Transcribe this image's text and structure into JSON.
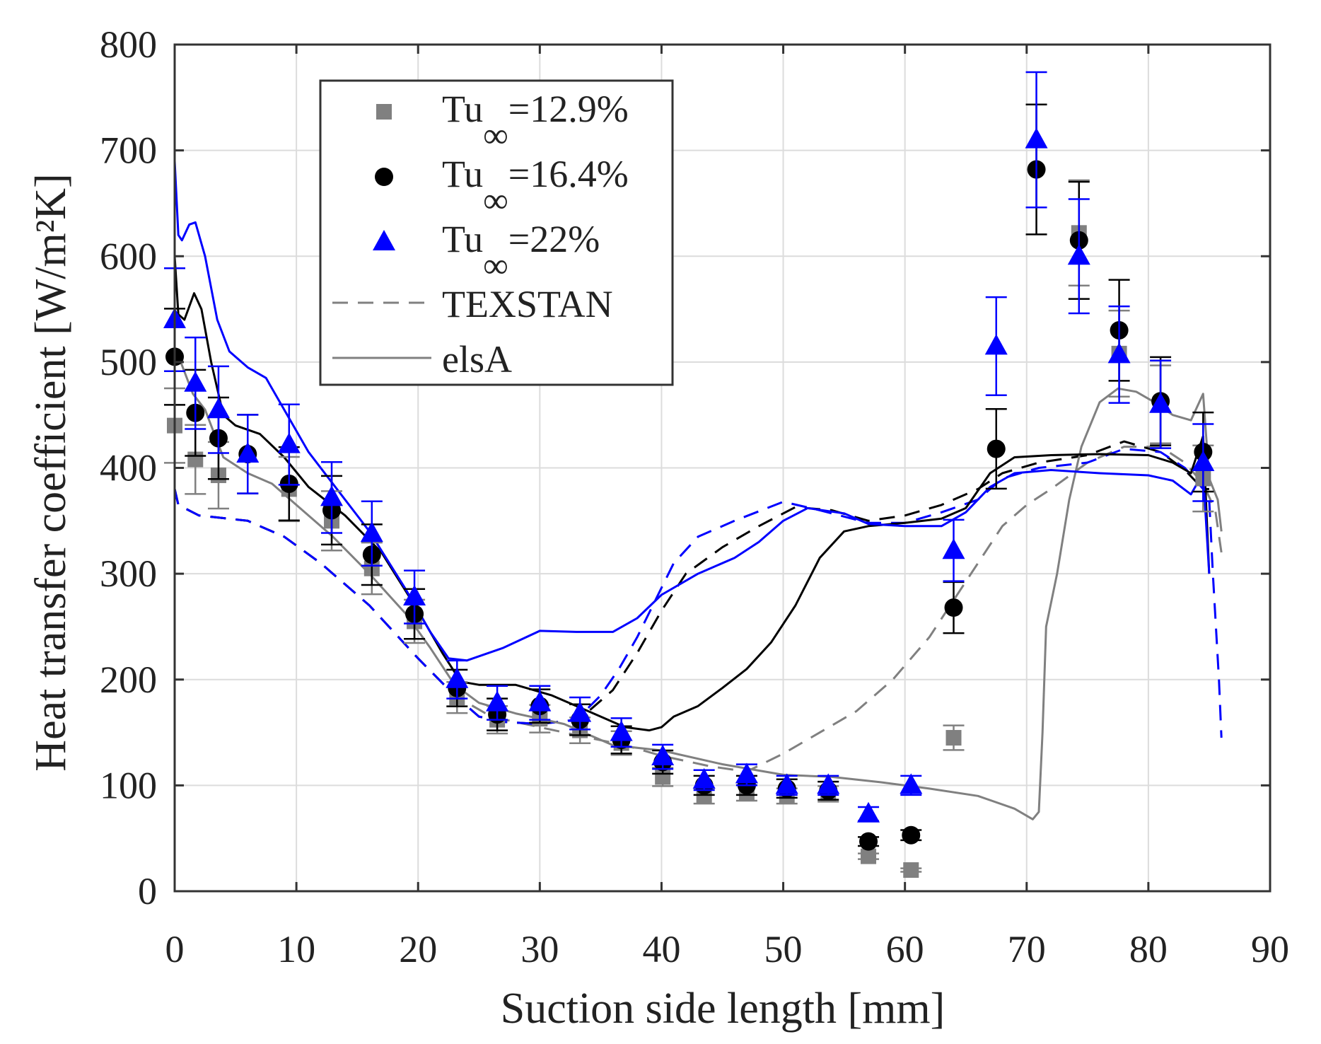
{
  "chart_data": {
    "type": "scatter",
    "xlabel": "Suction side length [mm]",
    "ylabel": "Heat transfer coefficient [W/m²K]",
    "xlim": [
      0,
      90
    ],
    "ylim": [
      0,
      800
    ],
    "xticks": [
      0,
      10,
      20,
      30,
      40,
      50,
      60,
      70,
      80,
      90
    ],
    "yticks": [
      0,
      100,
      200,
      300,
      400,
      500,
      600,
      700,
      800
    ],
    "xtick_labels": [
      "0",
      "10",
      "20",
      "30",
      "40",
      "50",
      "60",
      "70",
      "80",
      "90"
    ],
    "ytick_labels": [
      "0",
      "100",
      "200",
      "300",
      "400",
      "500",
      "600",
      "700",
      "800"
    ],
    "grid": true,
    "legend_position": "top-left",
    "legend": [
      {
        "prefix": "Tu",
        "sub": "∞",
        "suffix": "=12.9%",
        "marker": "square",
        "color": "#808080"
      },
      {
        "prefix": "Tu",
        "sub": "∞",
        "suffix": "=16.4%",
        "marker": "circle",
        "color": "#000000"
      },
      {
        "prefix": "Tu",
        "sub": "∞",
        "suffix": "=22%",
        "marker": "triangle",
        "color": "#0000ff"
      },
      {
        "label": "TEXSTAN",
        "style": "dashed",
        "color": "#808080"
      },
      {
        "label": "elsA",
        "style": "solid",
        "color": "#808080"
      }
    ],
    "x_positions": [
      0,
      1.7,
      3.6,
      6,
      9.4,
      12.9,
      16.2,
      19.7,
      23.2,
      26.5,
      30,
      33.3,
      36.7,
      40.1,
      43.5,
      47,
      50.3,
      53.7,
      57,
      60.5,
      64,
      67.5,
      70.8,
      74.3,
      77.6,
      81,
      84.5
    ],
    "series": [
      {
        "name": "Tu∞=12.9%",
        "marker": "square",
        "color": "#808080",
        "error_fraction": 0.08,
        "values": [
          440,
          408,
          393,
          null,
          380,
          350,
          305,
          255,
          183,
          162,
          163,
          152,
          140,
          108,
          90,
          93,
          90,
          92,
          33,
          20,
          145,
          null,
          null,
          622,
          508,
          460,
          390
        ]
      },
      {
        "name": "Tu∞=16.4%",
        "marker": "circle",
        "color": "#000000",
        "error_fraction": 0.09,
        "values": [
          505,
          452,
          428,
          413,
          385,
          360,
          318,
          262,
          192,
          167,
          175,
          162,
          143,
          122,
          100,
          100,
          97,
          95,
          47,
          53,
          268,
          418,
          682,
          615,
          530,
          463,
          415
        ]
      },
      {
        "name": "Tu∞=22%",
        "marker": "triangle",
        "color": "#0000ff",
        "error_fraction": 0.09,
        "values": [
          540,
          480,
          455,
          413,
          422,
          372,
          338,
          278,
          200,
          178,
          178,
          168,
          150,
          127,
          105,
          110,
          100,
          100,
          73,
          100,
          322,
          515,
          710,
          600,
          507,
          460,
          405
        ]
      }
    ],
    "lines": [
      {
        "name": "TEXSTAN Tu∞=12.9%",
        "style": "dashed",
        "color": "#808080",
        "points": [
          [
            0,
            380
          ],
          [
            0.3,
            365
          ],
          [
            2,
            355
          ],
          [
            6,
            350
          ],
          [
            9,
            335
          ],
          [
            12,
            310
          ],
          [
            16,
            270
          ],
          [
            20,
            220
          ],
          [
            23,
            185
          ],
          [
            26,
            165
          ],
          [
            30,
            155
          ],
          [
            34,
            145
          ],
          [
            37,
            138
          ],
          [
            40,
            128
          ],
          [
            44,
            118
          ],
          [
            47,
            113
          ],
          [
            50,
            130
          ],
          [
            53,
            150
          ],
          [
            56,
            170
          ],
          [
            59,
            200
          ],
          [
            62,
            240
          ],
          [
            64,
            275
          ],
          [
            66,
            310
          ],
          [
            68,
            345
          ],
          [
            70,
            365
          ],
          [
            72,
            380
          ],
          [
            75,
            405
          ],
          [
            78,
            420
          ],
          [
            81,
            420
          ],
          [
            83,
            405
          ],
          [
            84.5,
            385
          ],
          [
            85.5,
            360
          ],
          [
            86,
            320
          ]
        ]
      },
      {
        "name": "TEXSTAN Tu∞=16.4%",
        "style": "dashed",
        "color": "#000000",
        "points": [
          [
            0,
            380
          ],
          [
            0.3,
            365
          ],
          [
            2,
            355
          ],
          [
            6,
            350
          ],
          [
            9,
            335
          ],
          [
            12,
            310
          ],
          [
            16,
            270
          ],
          [
            20,
            220
          ],
          [
            23,
            185
          ],
          [
            25,
            165
          ],
          [
            27,
            160
          ],
          [
            30,
            158
          ],
          [
            33,
            162
          ],
          [
            34,
            170
          ],
          [
            36,
            190
          ],
          [
            38,
            225
          ],
          [
            40,
            265
          ],
          [
            42,
            300
          ],
          [
            45,
            325
          ],
          [
            48,
            345
          ],
          [
            51,
            363
          ],
          [
            54,
            360
          ],
          [
            57,
            350
          ],
          [
            60,
            355
          ],
          [
            63,
            365
          ],
          [
            66,
            380
          ],
          [
            68,
            395
          ],
          [
            71,
            405
          ],
          [
            75,
            412
          ],
          [
            78,
            425
          ],
          [
            81,
            415
          ],
          [
            83,
            398
          ],
          [
            84.5,
            380
          ],
          [
            85,
            380
          ]
        ]
      },
      {
        "name": "TEXSTAN Tu∞=22%",
        "style": "dashed",
        "color": "#0000ff",
        "points": [
          [
            0,
            380
          ],
          [
            0.3,
            365
          ],
          [
            2,
            355
          ],
          [
            6,
            350
          ],
          [
            9,
            335
          ],
          [
            12,
            310
          ],
          [
            16,
            270
          ],
          [
            20,
            220
          ],
          [
            23,
            185
          ],
          [
            25,
            165
          ],
          [
            27,
            160
          ],
          [
            30,
            158
          ],
          [
            33,
            162
          ],
          [
            35,
            185
          ],
          [
            36.5,
            210
          ],
          [
            38,
            240
          ],
          [
            39.5,
            275
          ],
          [
            41,
            310
          ],
          [
            43,
            335
          ],
          [
            46,
            350
          ],
          [
            50,
            368
          ],
          [
            53,
            360
          ],
          [
            57,
            348
          ],
          [
            60,
            348
          ],
          [
            63,
            358
          ],
          [
            66,
            370
          ],
          [
            68,
            390
          ],
          [
            71,
            400
          ],
          [
            75,
            405
          ],
          [
            78,
            418
          ],
          [
            81,
            415
          ],
          [
            83,
            400
          ],
          [
            84.5,
            380
          ],
          [
            85,
            370
          ],
          [
            85.3,
            300
          ],
          [
            85.8,
            200
          ],
          [
            86,
            145
          ]
        ]
      },
      {
        "name": "elsA Tu∞=12.9%",
        "style": "solid",
        "color": "#808080",
        "points": [
          [
            0,
            510
          ],
          [
            0.5,
            500
          ],
          [
            1.5,
            470
          ],
          [
            2.5,
            455
          ],
          [
            4,
            410
          ],
          [
            6,
            395
          ],
          [
            8,
            385
          ],
          [
            10,
            365
          ],
          [
            13,
            335
          ],
          [
            16,
            300
          ],
          [
            19,
            262
          ],
          [
            21,
            230
          ],
          [
            23,
            195
          ],
          [
            25,
            178
          ],
          [
            28,
            168
          ],
          [
            32,
            158
          ],
          [
            36,
            138
          ],
          [
            40,
            133
          ],
          [
            45,
            120
          ],
          [
            50,
            110
          ],
          [
            54,
            108
          ],
          [
            58,
            103
          ],
          [
            62,
            97
          ],
          [
            66,
            90
          ],
          [
            69,
            78
          ],
          [
            70.5,
            68
          ],
          [
            71,
            75
          ],
          [
            71.3,
            150
          ],
          [
            71.6,
            250
          ],
          [
            72.5,
            300
          ],
          [
            73.5,
            370
          ],
          [
            74.5,
            420
          ],
          [
            76,
            462
          ],
          [
            77.5,
            475
          ],
          [
            79,
            472
          ],
          [
            80.5,
            462
          ],
          [
            82,
            450
          ],
          [
            83.5,
            445
          ],
          [
            84.5,
            470
          ],
          [
            85,
            390
          ],
          [
            85.7,
            370
          ],
          [
            86,
            340
          ]
        ]
      },
      {
        "name": "elsA Tu∞=16.4%",
        "style": "solid",
        "color": "#000000",
        "points": [
          [
            0,
            600
          ],
          [
            0.3,
            545
          ],
          [
            0.8,
            540
          ],
          [
            1.6,
            565
          ],
          [
            2.2,
            550
          ],
          [
            3,
            500
          ],
          [
            4,
            450
          ],
          [
            5,
            440
          ],
          [
            7,
            432
          ],
          [
            9,
            410
          ],
          [
            11,
            382
          ],
          [
            14,
            355
          ],
          [
            17,
            320
          ],
          [
            20,
            265
          ],
          [
            22,
            225
          ],
          [
            23.5,
            198
          ],
          [
            25,
            195
          ],
          [
            28,
            195
          ],
          [
            31,
            185
          ],
          [
            34,
            170
          ],
          [
            37,
            155
          ],
          [
            39,
            152
          ],
          [
            40,
            155
          ],
          [
            41,
            165
          ],
          [
            43,
            175
          ],
          [
            45,
            192
          ],
          [
            47,
            210
          ],
          [
            49,
            235
          ],
          [
            51,
            270
          ],
          [
            53,
            315
          ],
          [
            55,
            340
          ],
          [
            57,
            345
          ],
          [
            60,
            348
          ],
          [
            63,
            352
          ],
          [
            65,
            362
          ],
          [
            67,
            395
          ],
          [
            69,
            410
          ],
          [
            72,
            412
          ],
          [
            76,
            413
          ],
          [
            80,
            412
          ],
          [
            82,
            405
          ],
          [
            83.5,
            395
          ],
          [
            84.5,
            430
          ],
          [
            85,
            300
          ]
        ]
      },
      {
        "name": "elsA Tu∞=22%",
        "style": "solid",
        "color": "#0000ff",
        "points": [
          [
            0,
            690
          ],
          [
            0.3,
            620
          ],
          [
            0.6,
            615
          ],
          [
            1.2,
            630
          ],
          [
            1.7,
            632
          ],
          [
            2.5,
            600
          ],
          [
            3.5,
            540
          ],
          [
            4.5,
            510
          ],
          [
            6,
            495
          ],
          [
            7.5,
            485
          ],
          [
            9,
            455
          ],
          [
            11,
            415
          ],
          [
            13,
            385
          ],
          [
            16,
            340
          ],
          [
            19,
            285
          ],
          [
            21,
            245
          ],
          [
            22.5,
            220
          ],
          [
            24,
            218
          ],
          [
            27,
            230
          ],
          [
            30,
            246
          ],
          [
            33,
            245
          ],
          [
            36,
            245
          ],
          [
            38,
            258
          ],
          [
            40,
            280
          ],
          [
            43,
            300
          ],
          [
            46,
            315
          ],
          [
            48,
            330
          ],
          [
            50,
            350
          ],
          [
            52,
            362
          ],
          [
            55,
            357
          ],
          [
            57,
            347
          ],
          [
            60,
            345
          ],
          [
            63,
            345
          ],
          [
            65,
            358
          ],
          [
            67,
            382
          ],
          [
            69,
            395
          ],
          [
            72,
            398
          ],
          [
            76,
            395
          ],
          [
            80,
            393
          ],
          [
            82,
            388
          ],
          [
            83.5,
            375
          ],
          [
            84.5,
            395
          ],
          [
            85,
            300
          ]
        ]
      }
    ]
  }
}
